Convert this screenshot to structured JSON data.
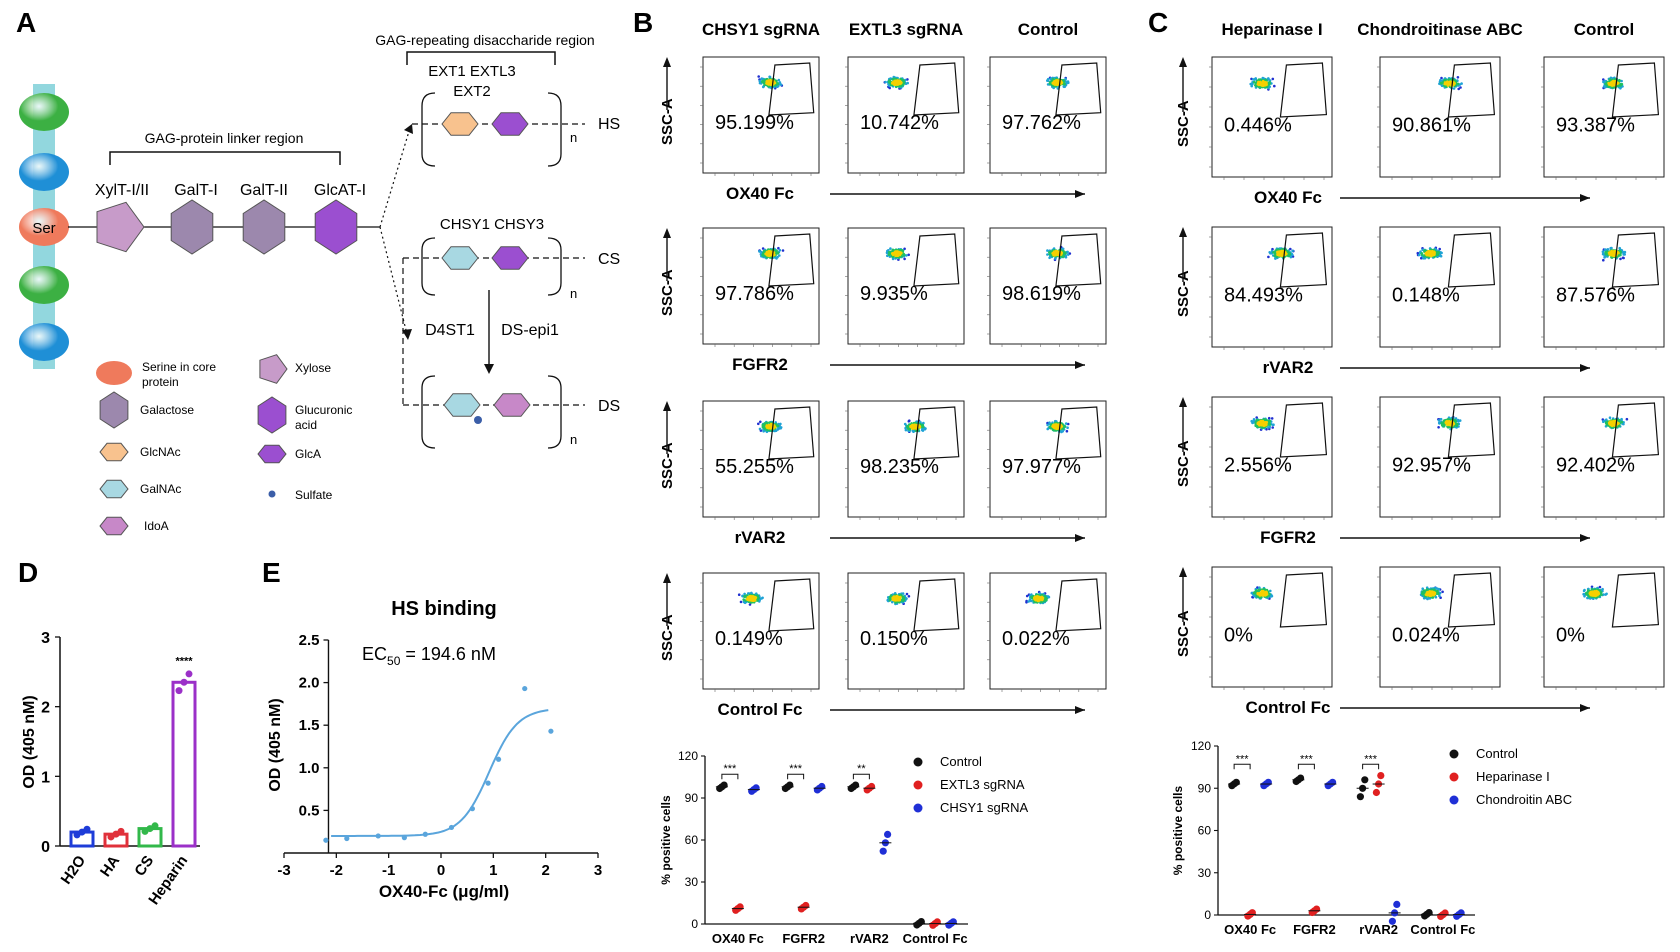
{
  "panel_letters": [
    "A",
    "B",
    "C",
    "D",
    "E"
  ],
  "colors": {
    "green_bead": "#3cb043",
    "blue_bead": "#1f8fd6",
    "ser_bead": "#ef7a5c",
    "galactose": "#9c88ad",
    "xylose": "#c79bc9",
    "glcA": "#9b4fd0",
    "glcNAc": "#f8c28e",
    "galNAc": "#a8d8e2",
    "idoA": "#c788c8",
    "sulfate": "#3b5ea8",
    "bar_H2O": "#1e3cd8",
    "bar_HA": "#e0303a",
    "bar_CS": "#32b84a",
    "bar_Heparin": "#9b30c8",
    "curve": "#5aa5dc",
    "control_dot": "#111111",
    "red_dot": "#e02020",
    "blue_dot": "#1f2fd6"
  },
  "panel_a": {
    "title_linker": "GAG-protein linker region",
    "title_repeat": "GAG-repeating disaccharide region",
    "ser_label": "Ser",
    "enzymes": [
      "XylT-I/II",
      "GalT-I",
      "GalT-II",
      "GlcAT-I"
    ],
    "hs_enzymes_line1": "EXT1  EXTL3",
    "hs_enzymes_line2": "EXT2",
    "cs_enzymes": "CHSY1 CHSY3",
    "ds_enzyme_left": "D4ST1",
    "ds_enzyme_right": "DS-epi1",
    "chain_labels": [
      "HS",
      "CS",
      "DS"
    ],
    "n_label": "n",
    "legend": [
      {
        "name": "Serine in core protein",
        "shape": "ellipse-icon"
      },
      {
        "name": "Galactose",
        "shape": "hexagon-icon"
      },
      {
        "name": "GlcNAc",
        "shape": "hexagon-icon"
      },
      {
        "name": "GalNAc",
        "shape": "hexagon-icon"
      },
      {
        "name": "IdoA",
        "shape": "hexagon-icon"
      },
      {
        "name": "Xylose",
        "shape": "pentagon-icon"
      },
      {
        "name": "Glucuronic acid",
        "shape": "hexagon-icon"
      },
      {
        "name": "GlcA",
        "shape": "hexagon-icon"
      },
      {
        "name": "Sulfate",
        "shape": "dot-icon"
      }
    ]
  },
  "panel_b": {
    "columns": [
      "CHSY1 sgRNA",
      "EXTL3 sgRNA",
      "Control"
    ],
    "y_axis": "SSC-A",
    "rows": [
      {
        "label": "OX40 Fc",
        "values": [
          "95.199%",
          "10.742%",
          "97.762%"
        ]
      },
      {
        "label": "FGFR2",
        "values": [
          "97.786%",
          "9.935%",
          "98.619%"
        ]
      },
      {
        "label": "rVAR2",
        "values": [
          "55.255%",
          "98.235%",
          "97.977%"
        ]
      },
      {
        "label": "Control Fc",
        "values": [
          "0.149%",
          "0.150%",
          "0.022%"
        ]
      }
    ]
  },
  "panel_c": {
    "columns": [
      "Heparinase I",
      "Chondroitinase ABC",
      "Control"
    ],
    "y_axis": "SSC-A",
    "rows": [
      {
        "label": "OX40 Fc",
        "values": [
          "0.446%",
          "90.861%",
          "93.387%"
        ]
      },
      {
        "label": "rVAR2",
        "values": [
          "84.493%",
          "0.148%",
          "87.576%"
        ]
      },
      {
        "label": "FGFR2",
        "values": [
          "2.556%",
          "92.957%",
          "92.402%"
        ]
      },
      {
        "label": "Control Fc",
        "values": [
          "0%",
          "0.024%",
          "0%"
        ]
      }
    ]
  },
  "chart_data": [
    {
      "id": "D",
      "type": "bar",
      "title": "",
      "ylabel": "OD (405 nM)",
      "xlabel": "",
      "categories": [
        "H2O",
        "HA",
        "CS",
        "Heparin"
      ],
      "values": [
        0.2,
        0.17,
        0.25,
        2.35
      ],
      "ylim": [
        0,
        3
      ],
      "yticks": [
        0,
        1,
        2,
        3
      ],
      "significance": [
        {
          "category": "Heparin",
          "label": "****"
        }
      ]
    },
    {
      "id": "E",
      "type": "line",
      "title": "HS binding",
      "annotation": "EC50 = 194.6 nM",
      "xlabel": "OX40-Fc (μg/ml)",
      "ylabel": "OD (405 nM)",
      "xlim": [
        -3,
        3
      ],
      "ylim": [
        0,
        2.5
      ],
      "xticks": [
        -3,
        -2,
        -1,
        0,
        1,
        2,
        3
      ],
      "yticks": [
        0.5,
        1.0,
        1.5,
        2.0,
        2.5
      ],
      "points": [
        {
          "x": -2.2,
          "y": 0.15
        },
        {
          "x": -1.8,
          "y": 0.17
        },
        {
          "x": -1.2,
          "y": 0.2
        },
        {
          "x": -0.7,
          "y": 0.18
        },
        {
          "x": -0.3,
          "y": 0.22
        },
        {
          "x": 0.2,
          "y": 0.3
        },
        {
          "x": 0.6,
          "y": 0.52
        },
        {
          "x": 0.9,
          "y": 0.82
        },
        {
          "x": 1.1,
          "y": 1.1
        },
        {
          "x": 1.6,
          "y": 1.93
        },
        {
          "x": 2.1,
          "y": 1.43
        }
      ],
      "fit": {
        "bottom": 0.2,
        "top": 1.7,
        "logEC50": 0.92,
        "hill": 1.6
      }
    },
    {
      "id": "B-summary",
      "type": "scatter",
      "ylabel": "% positive cells",
      "categories": [
        "OX40 Fc",
        "FGFR2",
        "rVAR2",
        "Control Fc"
      ],
      "ylim": [
        0,
        120
      ],
      "yticks": [
        0,
        30,
        60,
        90,
        120
      ],
      "series": [
        {
          "name": "Control",
          "values": [
            98,
            98,
            98,
            0.5
          ]
        },
        {
          "name": "EXTL3 sgRNA",
          "values": [
            11,
            12,
            97,
            0.3
          ]
        },
        {
          "name": "CHSY1 sgRNA",
          "values": [
            96,
            97,
            58,
            0.4
          ]
        }
      ],
      "significance": [
        {
          "category": "OX40 Fc",
          "label": "***"
        },
        {
          "category": "FGFR2",
          "label": "***"
        },
        {
          "category": "rVAR2",
          "label": "**"
        }
      ]
    },
    {
      "id": "C-summary",
      "type": "scatter",
      "ylabel": "% positive cells",
      "categories": [
        "OX40 Fc",
        "FGFR2",
        "rVAR2",
        "Control Fc"
      ],
      "ylim": [
        0,
        120
      ],
      "yticks": [
        0,
        30,
        60,
        90,
        120
      ],
      "series": [
        {
          "name": "Control",
          "values": [
            93,
            96,
            90,
            0.5
          ]
        },
        {
          "name": "Heparinase I",
          "values": [
            0.4,
            3,
            93,
            0.2
          ]
        },
        {
          "name": "Chondroitin ABC",
          "values": [
            93,
            93,
            1.5,
            0.3
          ]
        }
      ],
      "significance": [
        {
          "category": "OX40 Fc",
          "label": "***"
        },
        {
          "category": "FGFR2",
          "label": "***"
        },
        {
          "category": "rVAR2",
          "label": "***"
        }
      ]
    }
  ]
}
